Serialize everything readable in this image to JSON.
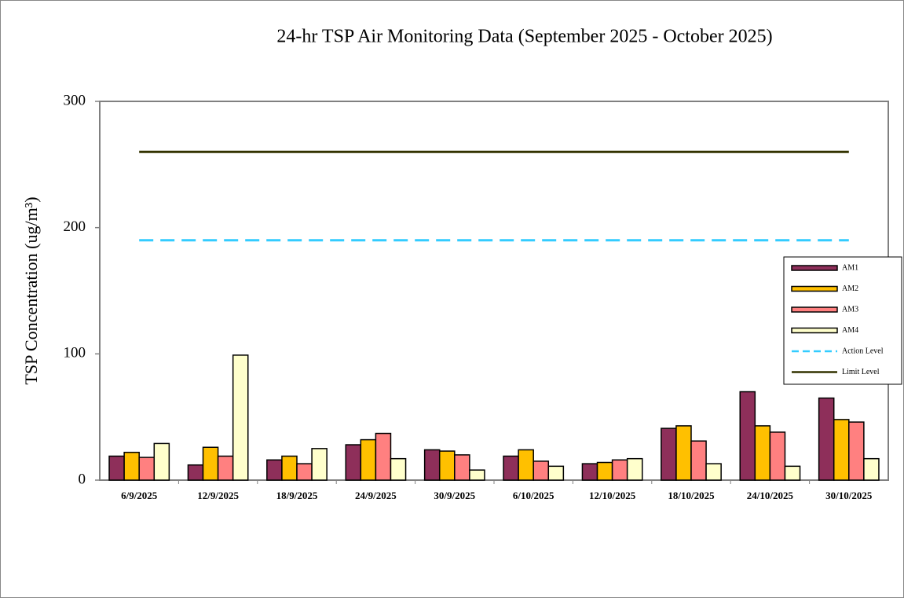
{
  "chart_data": {
    "type": "bar",
    "title": "24-hr TSP Air Monitoring Data (September 2025 - October 2025)",
    "y_label": "TSP Concentration (ug/m³)",
    "categories": [
      "6/9/2025",
      "12/9/2025",
      "18/9/2025",
      "24/9/2025",
      "30/9/2025",
      "6/10/2025",
      "12/10/2025",
      "18/10/2025",
      "24/10/2025",
      "30/10/2025"
    ],
    "series": [
      {
        "name": "AM1",
        "type": "bar",
        "color": "#8e2f5a",
        "values": [
          19,
          12,
          16,
          28,
          24,
          19,
          13,
          41,
          70,
          65
        ]
      },
      {
        "name": "AM2",
        "type": "bar",
        "color": "#ffc000",
        "values": [
          22,
          26,
          19,
          32,
          23,
          24,
          14,
          43,
          43,
          48
        ]
      },
      {
        "name": "AM3",
        "type": "bar",
        "color": "#ff8080",
        "values": [
          18,
          19,
          13,
          37,
          20,
          15,
          16,
          31,
          38,
          46
        ]
      },
      {
        "name": "AM4",
        "type": "bar",
        "color": "#ffffcc",
        "values": [
          29,
          99,
          25,
          17,
          8,
          11,
          17,
          13,
          11,
          17
        ]
      },
      {
        "name": "Action Level",
        "type": "line",
        "dashed": true,
        "color": "#33ccff",
        "values": [
          190,
          190,
          190,
          190,
          190,
          190,
          190,
          190,
          190,
          190
        ]
      },
      {
        "name": "Limit Level",
        "type": "line",
        "dashed": false,
        "color": "#333300",
        "values": [
          260,
          260,
          260,
          260,
          260,
          260,
          260,
          260,
          260,
          260
        ]
      }
    ],
    "ylim": [
      0,
      300
    ],
    "yticks": [
      0,
      100,
      200,
      300
    ],
    "grid": false,
    "legend": "right"
  }
}
